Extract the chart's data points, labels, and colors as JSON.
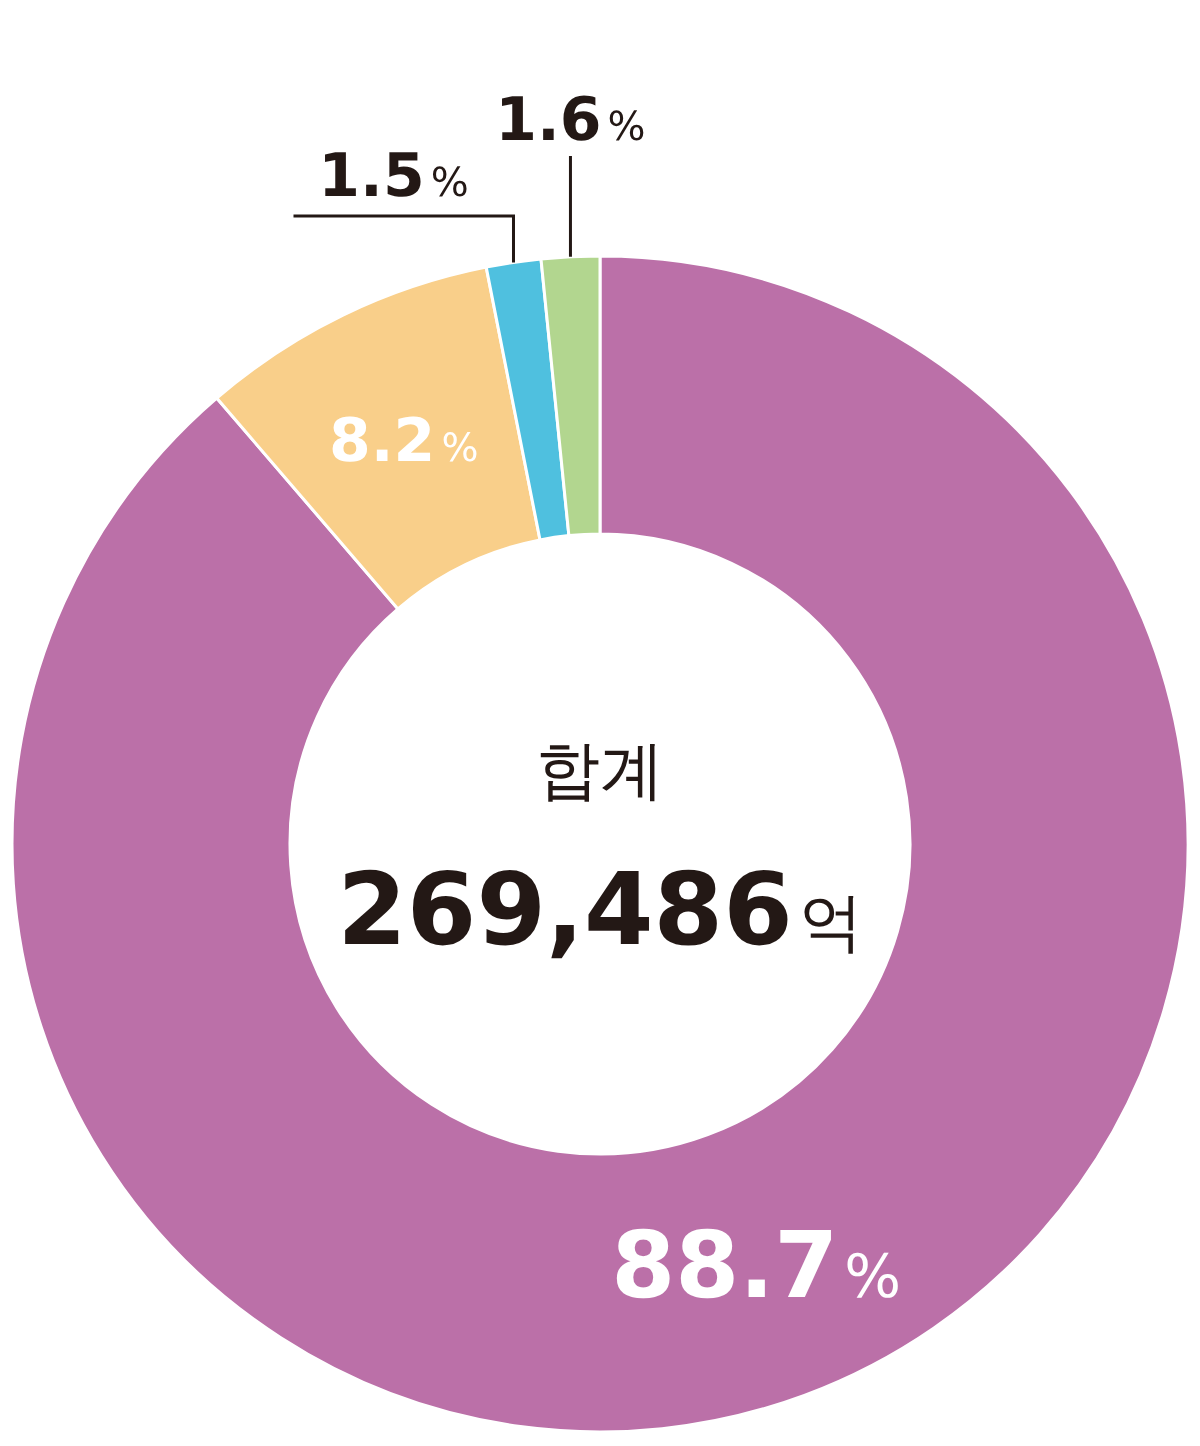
{
  "chart_data": {
    "type": "donut",
    "categories": [
      null,
      null,
      null,
      null
    ],
    "values": [
      88.7,
      8.2,
      1.5,
      1.6
    ],
    "colors": [
      "#bb70a8",
      "#f9cf8a",
      "#4fc0df",
      "#b2d68f"
    ],
    "value_labels": [
      "88.7%",
      "8.2%",
      "1.5%",
      "1.6%"
    ],
    "annotations": [
      "합계",
      "269,486억"
    ]
  }
}
